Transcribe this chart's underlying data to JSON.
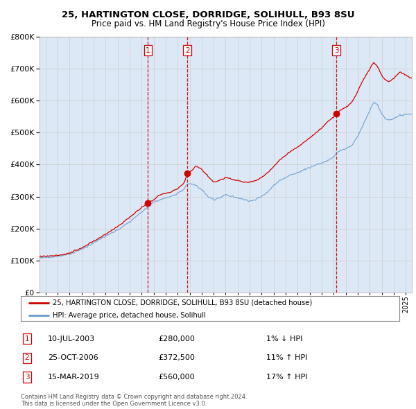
{
  "title_line1": "25, HARTINGTON CLOSE, DORRIDGE, SOLIHULL, B93 8SU",
  "title_line2": "Price paid vs. HM Land Registry's House Price Index (HPI)",
  "legend_line1": "25, HARTINGTON CLOSE, DORRIDGE, SOLIHULL, B93 8SU (detached house)",
  "legend_line2": "HPI: Average price, detached house, Solihull",
  "footer1": "Contains HM Land Registry data © Crown copyright and database right 2024.",
  "footer2": "This data is licensed under the Open Government Licence v3.0.",
  "sales": [
    {
      "num": 1,
      "date": "10-JUL-2003",
      "price": 280000,
      "pct": "1%",
      "dir": "↓"
    },
    {
      "num": 2,
      "date": "25-OCT-2006",
      "price": 372500,
      "pct": "11%",
      "dir": "↑"
    },
    {
      "num": 3,
      "date": "15-MAR-2019",
      "price": 560000,
      "pct": "17%",
      "dir": "↑"
    }
  ],
  "sale_years": [
    2003.53,
    2006.82,
    2019.21
  ],
  "sale_prices": [
    280000,
    372500,
    560000
  ],
  "background_color": "#dce8f5",
  "plot_bg_color": "#ffffff",
  "red_color": "#cc0000",
  "blue_color": "#6699cc",
  "shade_color": "#ccddf0",
  "ylim": [
    0,
    800000
  ],
  "xlim_start": 1994.5,
  "xlim_end": 2025.5
}
